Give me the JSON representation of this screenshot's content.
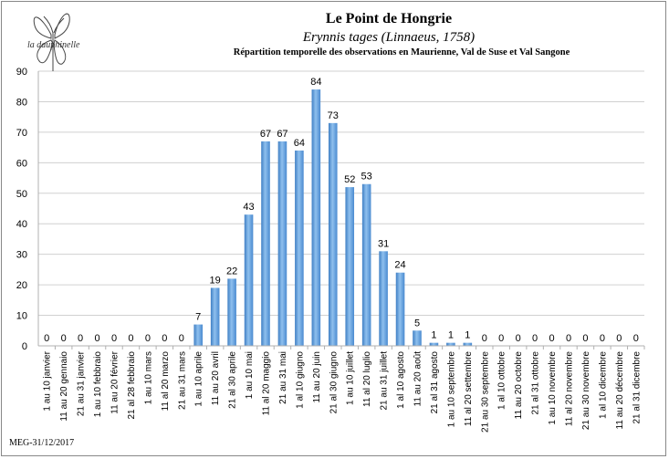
{
  "logo": {
    "label": "la dauphinelle",
    "icon": "butterfly-icon"
  },
  "header": {
    "title": "Le Point de Hongrie",
    "subtitle": "Erynnis tages (Linnaeus, 1758)",
    "description": "Répartition temporelle des observations en Maurienne, Val de Suse et Val Sangone"
  },
  "footer": {
    "credit": "MEG-31/12/2017"
  },
  "chart_data": {
    "type": "bar",
    "title": "Le Point de Hongrie",
    "xlabel": "",
    "ylabel": "",
    "ylim": [
      0,
      90
    ],
    "yticks": [
      0,
      10,
      20,
      30,
      40,
      50,
      60,
      70,
      80,
      90
    ],
    "grid": true,
    "legend": "none",
    "bar_color": "#5b9bd5",
    "categories": [
      "1 au 10 janvier",
      "11 au 20 gennaio",
      "21 au 31 janvier",
      "1 au 10 febbraio",
      "11 au 20 février",
      "21 al 28 febbraio",
      "1 au 10 mars",
      "11 al 20 marzo",
      "21 au 31 mars",
      "1 au 10 aprile",
      "11 au 20 avril",
      "21 al 30 aprile",
      "1 au 10 mai",
      "11 al 20 maggio",
      "21 au 31 mai",
      "1 al 10 giugno",
      "11 au 20 juin",
      "21 al 30 giugno",
      "1 au 10 juillet",
      "11 al 20 luglio",
      "21 au 31 juillet",
      "1 al 10 agosto",
      "11 au 20 août",
      "21 al 31 agosto",
      "1 au 10 septembre",
      "11 al 20 settembre",
      "21 au 30 septembre",
      "1 al 10 ottobre",
      "11 au 20 octobre",
      "21 al 31 ottobre",
      "1 au 10 novembre",
      "11 al 20 novembre",
      "21 au 30 novembre",
      "1 al 10 dicembre",
      "11 au 20 décembre",
      "21 al 31 dicembre"
    ],
    "values": [
      0,
      0,
      0,
      0,
      0,
      0,
      0,
      0,
      0,
      7,
      19,
      22,
      43,
      67,
      67,
      64,
      84,
      73,
      52,
      53,
      31,
      24,
      5,
      1,
      1,
      1,
      0,
      0,
      0,
      0,
      0,
      0,
      0,
      0,
      0,
      0
    ]
  }
}
